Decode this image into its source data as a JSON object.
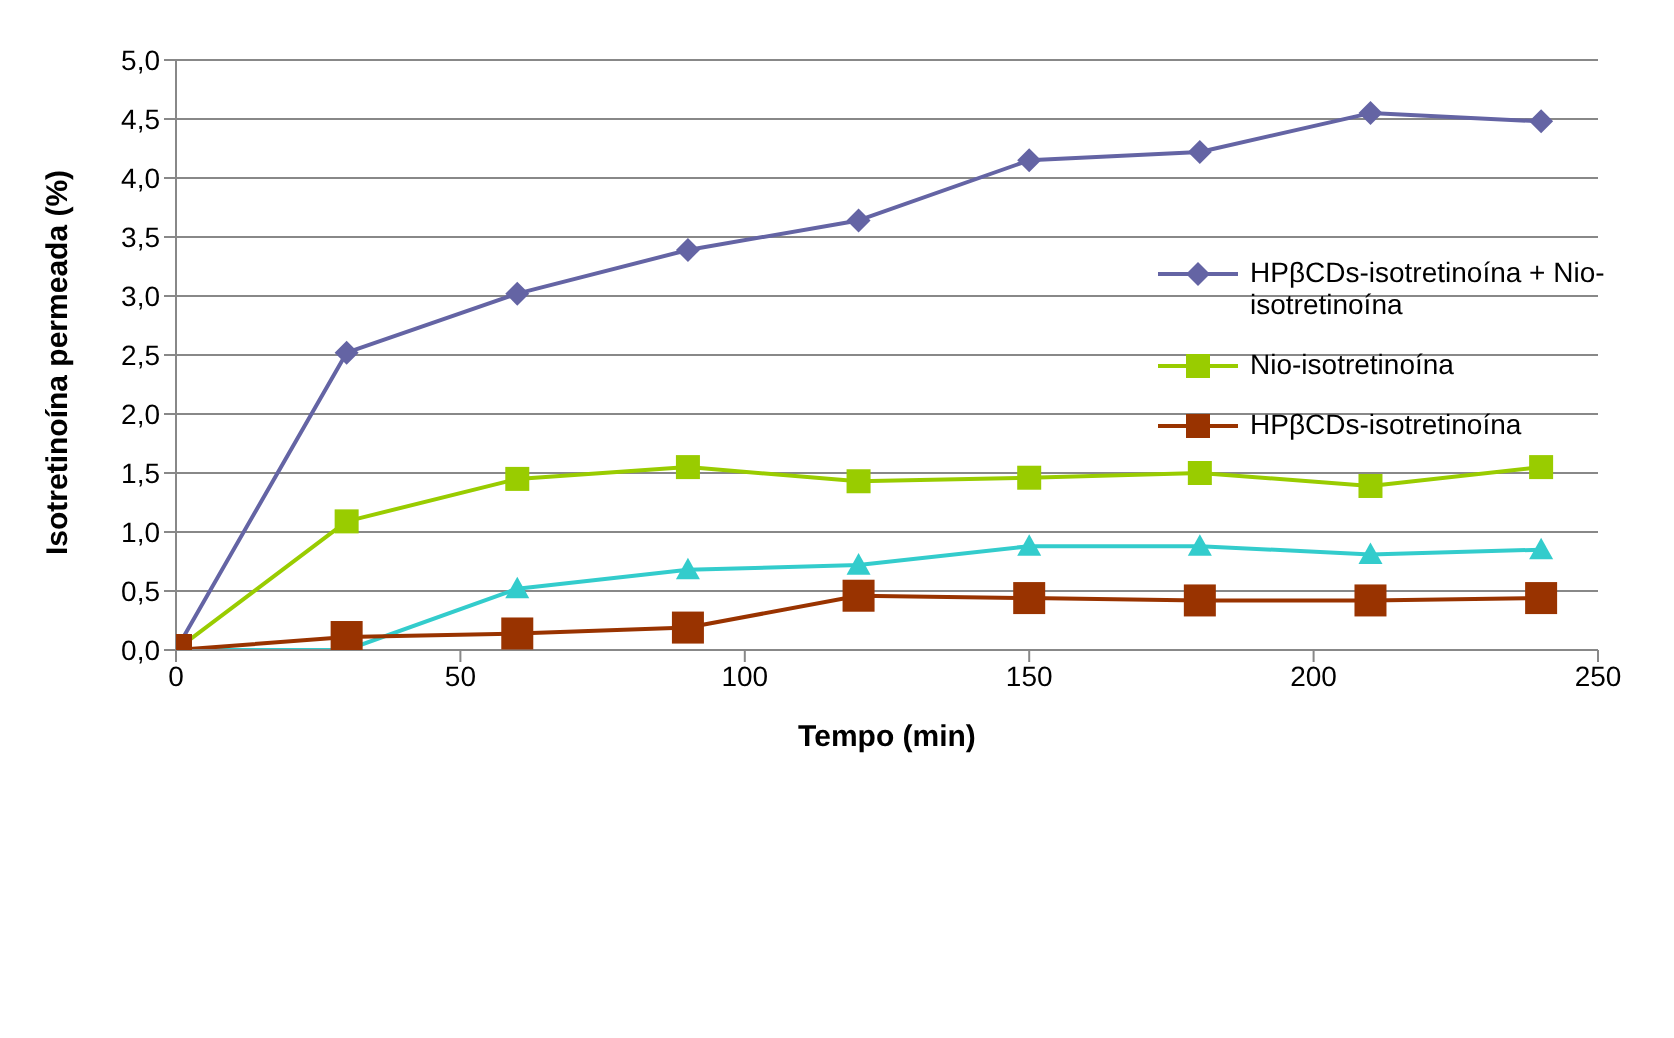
{
  "chart_data": {
    "type": "line",
    "xlabel": "Tempo (min)",
    "ylabel": "Isotretinoína permeada (%)",
    "x": [
      0,
      30,
      60,
      90,
      120,
      150,
      180,
      210,
      240
    ],
    "series": [
      {
        "name": "HPβCDs-isotretinoína + Nio-isotretinoína",
        "color": "#6464a4",
        "marker": "diamond",
        "values": [
          0,
          2.52,
          3.02,
          3.39,
          3.64,
          4.15,
          4.22,
          4.55,
          4.48
        ]
      },
      {
        "name": "Nio-isotretinoína",
        "color": "#99cc00",
        "marker": "square",
        "values": [
          0,
          1.09,
          1.45,
          1.55,
          1.43,
          1.46,
          1.5,
          1.39,
          1.55
        ]
      },
      {
        "color": "#33cccc",
        "marker": "triangle",
        "values": [
          0,
          0,
          0.52,
          0.68,
          0.72,
          0.88,
          0.88,
          0.81,
          0.85
        ]
      },
      {
        "name": "HPβCDs-isotretinoína",
        "color": "#993300",
        "marker": "square",
        "values": [
          0,
          0.11,
          0.14,
          0.19,
          0.46,
          0.44,
          0.42,
          0.42,
          0.44
        ]
      }
    ],
    "xlim": [
      0,
      250
    ],
    "xticks": [
      0,
      50,
      100,
      150,
      200,
      250
    ],
    "ylim": [
      0,
      5
    ],
    "yticks": [
      {
        "value": 0,
        "label": "0,0"
      },
      {
        "value": 0.5,
        "label": "0,5"
      },
      {
        "value": 1,
        "label": "1,0"
      },
      {
        "value": 1.5,
        "label": "1,5"
      },
      {
        "value": 2,
        "label": "2,0"
      },
      {
        "value": 2.5,
        "label": "2,5"
      },
      {
        "value": 3,
        "label": "3,0"
      },
      {
        "value": 3.5,
        "label": "3,5"
      },
      {
        "value": 4,
        "label": "4,0"
      },
      {
        "value": 4.5,
        "label": "4,5"
      },
      {
        "value": 5,
        "label": "5,0"
      }
    ],
    "grid": "y",
    "legend": "right"
  }
}
